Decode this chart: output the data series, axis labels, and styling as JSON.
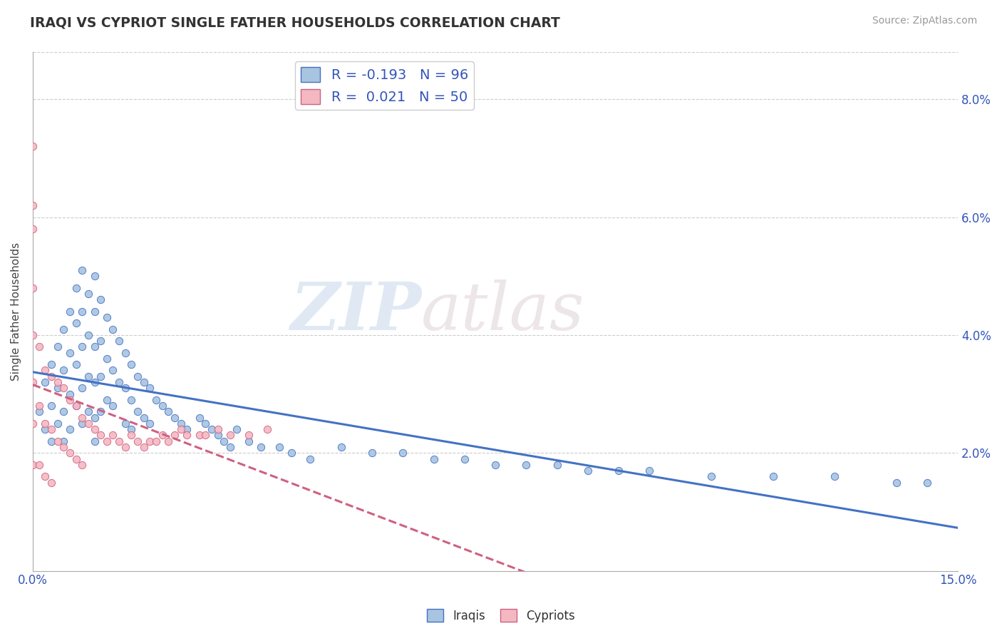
{
  "title": "IRAQI VS CYPRIOT SINGLE FATHER HOUSEHOLDS CORRELATION CHART",
  "source": "Source: ZipAtlas.com",
  "ylabel": "Single Father Households",
  "y_ticks": [
    "2.0%",
    "4.0%",
    "6.0%",
    "8.0%"
  ],
  "y_tick_vals": [
    0.02,
    0.04,
    0.06,
    0.08
  ],
  "x_range": [
    0.0,
    0.15
  ],
  "y_range": [
    0.0,
    0.088
  ],
  "iraqi_color": "#a8c4e0",
  "iraqi_line_color": "#4472c4",
  "cypriot_color": "#f4b8c1",
  "cypriot_line_color": "#d06080",
  "watermark_zip": "ZIP",
  "watermark_atlas": "atlas",
  "legend_label1": "R = -0.193   N = 96",
  "legend_label2": "R =  0.021   N = 50",
  "iraqi_x": [
    0.001,
    0.002,
    0.002,
    0.003,
    0.003,
    0.003,
    0.004,
    0.004,
    0.004,
    0.005,
    0.005,
    0.005,
    0.005,
    0.006,
    0.006,
    0.006,
    0.006,
    0.007,
    0.007,
    0.007,
    0.007,
    0.008,
    0.008,
    0.008,
    0.008,
    0.008,
    0.009,
    0.009,
    0.009,
    0.009,
    0.01,
    0.01,
    0.01,
    0.01,
    0.01,
    0.01,
    0.011,
    0.011,
    0.011,
    0.011,
    0.012,
    0.012,
    0.012,
    0.013,
    0.013,
    0.013,
    0.014,
    0.014,
    0.015,
    0.015,
    0.015,
    0.016,
    0.016,
    0.016,
    0.017,
    0.017,
    0.018,
    0.018,
    0.019,
    0.019,
    0.02,
    0.021,
    0.022,
    0.023,
    0.024,
    0.025,
    0.027,
    0.028,
    0.029,
    0.03,
    0.031,
    0.032,
    0.033,
    0.035,
    0.037,
    0.04,
    0.042,
    0.045,
    0.05,
    0.055,
    0.06,
    0.065,
    0.07,
    0.075,
    0.08,
    0.085,
    0.09,
    0.095,
    0.1,
    0.11,
    0.12,
    0.13,
    0.14,
    0.145
  ],
  "iraqi_y": [
    0.027,
    0.032,
    0.024,
    0.035,
    0.028,
    0.022,
    0.038,
    0.031,
    0.025,
    0.041,
    0.034,
    0.027,
    0.022,
    0.044,
    0.037,
    0.03,
    0.024,
    0.048,
    0.042,
    0.035,
    0.028,
    0.051,
    0.044,
    0.038,
    0.031,
    0.025,
    0.047,
    0.04,
    0.033,
    0.027,
    0.05,
    0.044,
    0.038,
    0.032,
    0.026,
    0.022,
    0.046,
    0.039,
    0.033,
    0.027,
    0.043,
    0.036,
    0.029,
    0.041,
    0.034,
    0.028,
    0.039,
    0.032,
    0.037,
    0.031,
    0.025,
    0.035,
    0.029,
    0.024,
    0.033,
    0.027,
    0.032,
    0.026,
    0.031,
    0.025,
    0.029,
    0.028,
    0.027,
    0.026,
    0.025,
    0.024,
    0.026,
    0.025,
    0.024,
    0.023,
    0.022,
    0.021,
    0.024,
    0.022,
    0.021,
    0.021,
    0.02,
    0.019,
    0.021,
    0.02,
    0.02,
    0.019,
    0.019,
    0.018,
    0.018,
    0.018,
    0.017,
    0.017,
    0.017,
    0.016,
    0.016,
    0.016,
    0.015,
    0.015
  ],
  "cypriot_x": [
    0.0,
    0.0,
    0.0,
    0.0,
    0.0,
    0.0,
    0.0,
    0.0,
    0.001,
    0.001,
    0.001,
    0.002,
    0.002,
    0.002,
    0.003,
    0.003,
    0.003,
    0.004,
    0.004,
    0.005,
    0.005,
    0.006,
    0.006,
    0.007,
    0.007,
    0.008,
    0.008,
    0.009,
    0.01,
    0.011,
    0.012,
    0.013,
    0.014,
    0.015,
    0.016,
    0.017,
    0.018,
    0.019,
    0.02,
    0.021,
    0.022,
    0.023,
    0.024,
    0.025,
    0.027,
    0.028,
    0.03,
    0.032,
    0.035,
    0.038
  ],
  "cypriot_y": [
    0.072,
    0.062,
    0.058,
    0.048,
    0.04,
    0.032,
    0.025,
    0.018,
    0.038,
    0.028,
    0.018,
    0.034,
    0.025,
    0.016,
    0.033,
    0.024,
    0.015,
    0.032,
    0.022,
    0.031,
    0.021,
    0.029,
    0.02,
    0.028,
    0.019,
    0.026,
    0.018,
    0.025,
    0.024,
    0.023,
    0.022,
    0.023,
    0.022,
    0.021,
    0.023,
    0.022,
    0.021,
    0.022,
    0.022,
    0.023,
    0.022,
    0.023,
    0.024,
    0.023,
    0.023,
    0.023,
    0.024,
    0.023,
    0.023,
    0.024
  ]
}
